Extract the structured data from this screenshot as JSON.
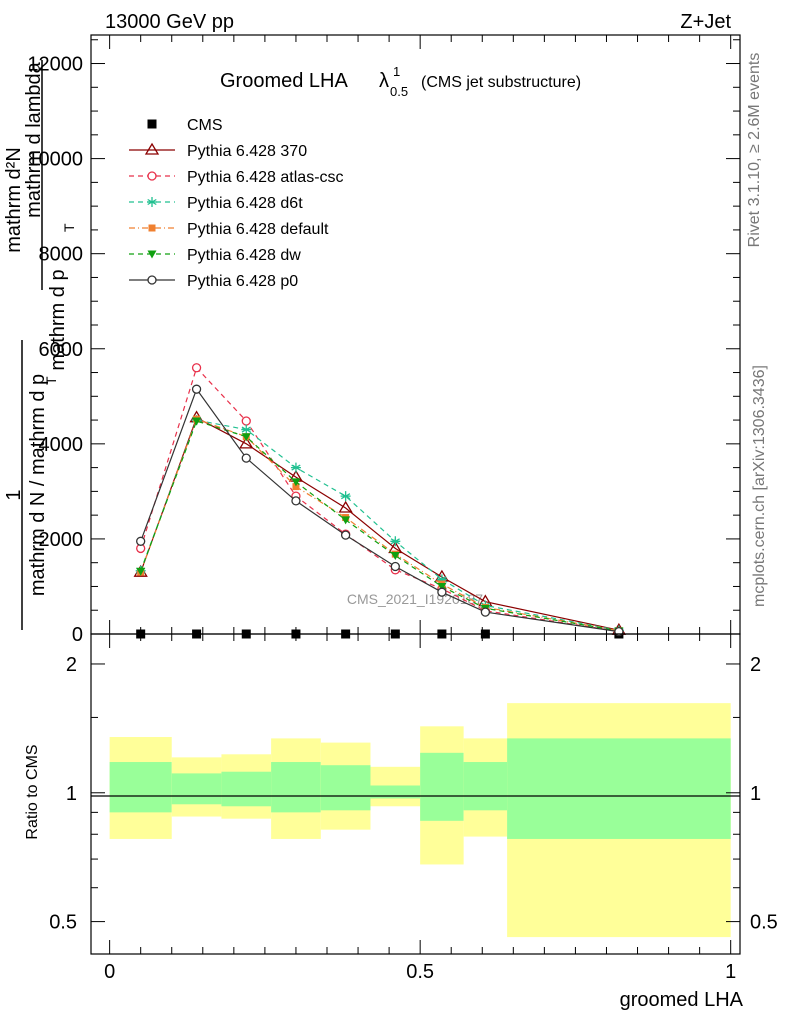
{
  "header": {
    "beam": "13000 GeV pp",
    "process": "Z+Jet"
  },
  "side": {
    "rivet": "Rivet 3.1.10, ≥ 2.6M events",
    "mcplots": "mcplots.cern.ch [arXiv:1306.3436]"
  },
  "watermark": "CMS_2021_I1920187",
  "chart_data": [
    {
      "type": "line",
      "title": "Groomed LHA",
      "title_lambda": "λ",
      "title_sup": "1",
      "title_sub": "0.5",
      "subtitle": "(CMS jet substructure)",
      "ylabel_num_1": "mathrm d²N",
      "ylabel_den_1": "mathrm d p",
      "ylabel_sub_1": "T",
      "ylabel_den_1b": "mathrm d lambda",
      "ylabel_num_2": "1",
      "ylabel_den_2": "mathrm d N / mathrm d p",
      "ylabel_sub_2": "T",
      "ylim": [
        0,
        12600
      ],
      "xlim": [
        -0.03,
        1.015
      ],
      "yticks": [
        0,
        2000,
        4000,
        6000,
        8000,
        10000,
        12000
      ],
      "ytick_labels": [
        "0",
        "2000",
        "4000",
        "6000",
        "8000",
        "10000",
        "12000"
      ],
      "legend_position": "top-left",
      "x": [
        0.05,
        0.14,
        0.22,
        0.3,
        0.38,
        0.46,
        0.535,
        0.605,
        0.82
      ],
      "series": [
        {
          "name": "CMS",
          "color": "#000000",
          "marker": "square",
          "values": [
            0,
            0,
            0,
            0,
            0,
            0,
            0,
            0,
            0
          ]
        },
        {
          "name": "Pythia 6.428 370",
          "color": "#8b0000",
          "marker": "triangle-open",
          "dash": "",
          "values": [
            1300,
            4550,
            4000,
            3300,
            2650,
            1800,
            1200,
            680,
            80
          ]
        },
        {
          "name": "Pythia 6.428 atlas-csc",
          "color": "#e8304a",
          "marker": "circle-open",
          "dash": "5,4",
          "values": [
            1800,
            5600,
            4480,
            2900,
            2100,
            1350,
            950,
            490,
            55
          ]
        },
        {
          "name": "Pythia 6.428 d6t",
          "color": "#20c090",
          "marker": "star",
          "dash": "5,4",
          "values": [
            1330,
            4500,
            4300,
            3500,
            2900,
            1950,
            1150,
            600,
            75
          ]
        },
        {
          "name": "Pythia 6.428 default",
          "color": "#f08030",
          "marker": "square-filled",
          "dash": "6,3,1,3",
          "values": [
            1300,
            4520,
            4150,
            3100,
            2450,
            1680,
            1050,
            560,
            70
          ]
        },
        {
          "name": "Pythia 6.428 dw",
          "color": "#10a010",
          "marker": "triangle-down-filled",
          "dash": "5,4",
          "values": [
            1320,
            4480,
            4150,
            3200,
            2400,
            1650,
            1000,
            540,
            65
          ]
        },
        {
          "name": "Pythia 6.428 p0",
          "color": "#333333",
          "marker": "circle-open",
          "dash": "",
          "values": [
            1950,
            5150,
            3700,
            2800,
            2080,
            1420,
            880,
            460,
            50
          ]
        }
      ]
    },
    {
      "type": "area",
      "ylabel": "Ratio to CMS",
      "xlabel": "groomed LHA",
      "ylim": [
        0.42,
        2.35
      ],
      "xlim": [
        -0.03,
        1.015
      ],
      "yticks": [
        0.5,
        1,
        2
      ],
      "ytick_labels": [
        "0.5",
        "1",
        "2"
      ],
      "xticks": [
        0,
        0.5,
        1
      ],
      "xtick_labels": [
        "0",
        "0.5",
        "1"
      ],
      "bins": [
        {
          "x0": 0.0,
          "x1": 0.1,
          "stat_lo": 0.9,
          "stat_hi": 1.18,
          "tot_lo": 0.78,
          "tot_hi": 1.35
        },
        {
          "x0": 0.1,
          "x1": 0.18,
          "stat_lo": 0.94,
          "stat_hi": 1.11,
          "tot_lo": 0.88,
          "tot_hi": 1.21
        },
        {
          "x0": 0.18,
          "x1": 0.26,
          "stat_lo": 0.93,
          "stat_hi": 1.12,
          "tot_lo": 0.87,
          "tot_hi": 1.23
        },
        {
          "x0": 0.26,
          "x1": 0.34,
          "stat_lo": 0.9,
          "stat_hi": 1.18,
          "tot_lo": 0.78,
          "tot_hi": 1.34
        },
        {
          "x0": 0.34,
          "x1": 0.42,
          "stat_lo": 0.91,
          "stat_hi": 1.16,
          "tot_lo": 0.82,
          "tot_hi": 1.31
        },
        {
          "x0": 0.42,
          "x1": 0.5,
          "stat_lo": 0.97,
          "stat_hi": 1.04,
          "tot_lo": 0.93,
          "tot_hi": 1.15
        },
        {
          "x0": 0.5,
          "x1": 0.57,
          "stat_lo": 0.86,
          "stat_hi": 1.24,
          "tot_lo": 0.68,
          "tot_hi": 1.43
        },
        {
          "x0": 0.57,
          "x1": 0.64,
          "stat_lo": 0.91,
          "stat_hi": 1.18,
          "tot_lo": 0.79,
          "tot_hi": 1.34
        },
        {
          "x0": 0.64,
          "x1": 1.0,
          "stat_lo": 0.78,
          "stat_hi": 1.34,
          "tot_lo": 0.46,
          "tot_hi": 1.62
        }
      ],
      "stat_color": "#99ff99",
      "tot_color": "#ffff99"
    }
  ]
}
